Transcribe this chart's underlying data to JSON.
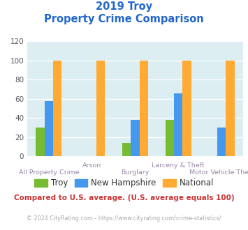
{
  "title_line1": "2019 Troy",
  "title_line2": "Property Crime Comparison",
  "categories": [
    "All Property Crime",
    "Arson",
    "Burglary",
    "Larceny & Theft",
    "Motor Vehicle Theft"
  ],
  "series": {
    "Troy": [
      30,
      0,
      14,
      38,
      0
    ],
    "New Hampshire": [
      58,
      0,
      38,
      66,
      30
    ],
    "National": [
      100,
      100,
      100,
      100,
      100
    ]
  },
  "colors": {
    "Troy": "#77bb33",
    "New Hampshire": "#4499ee",
    "National": "#ffaa33"
  },
  "ylim": [
    0,
    120
  ],
  "yticks": [
    0,
    20,
    40,
    60,
    80,
    100,
    120
  ],
  "plot_bg": "#ddeef2",
  "title_color": "#2266cc",
  "xlabel_color": "#9988aa",
  "legend_text_color": "#333333",
  "legend_fontsize": 8.5,
  "footnote": "Compared to U.S. average. (U.S. average equals 100)",
  "copyright": "© 2024 CityRating.com - https://www.cityrating.com/crime-statistics/",
  "footnote_color": "#cc3333",
  "copyright_color": "#aaaaaa",
  "cat_labels_row1": [
    "All Property Crime",
    "",
    "Burglary",
    "",
    "Motor Vehicle Theft"
  ],
  "cat_labels_row2": [
    "",
    "Arson",
    "",
    "Larceny & Theft",
    ""
  ]
}
